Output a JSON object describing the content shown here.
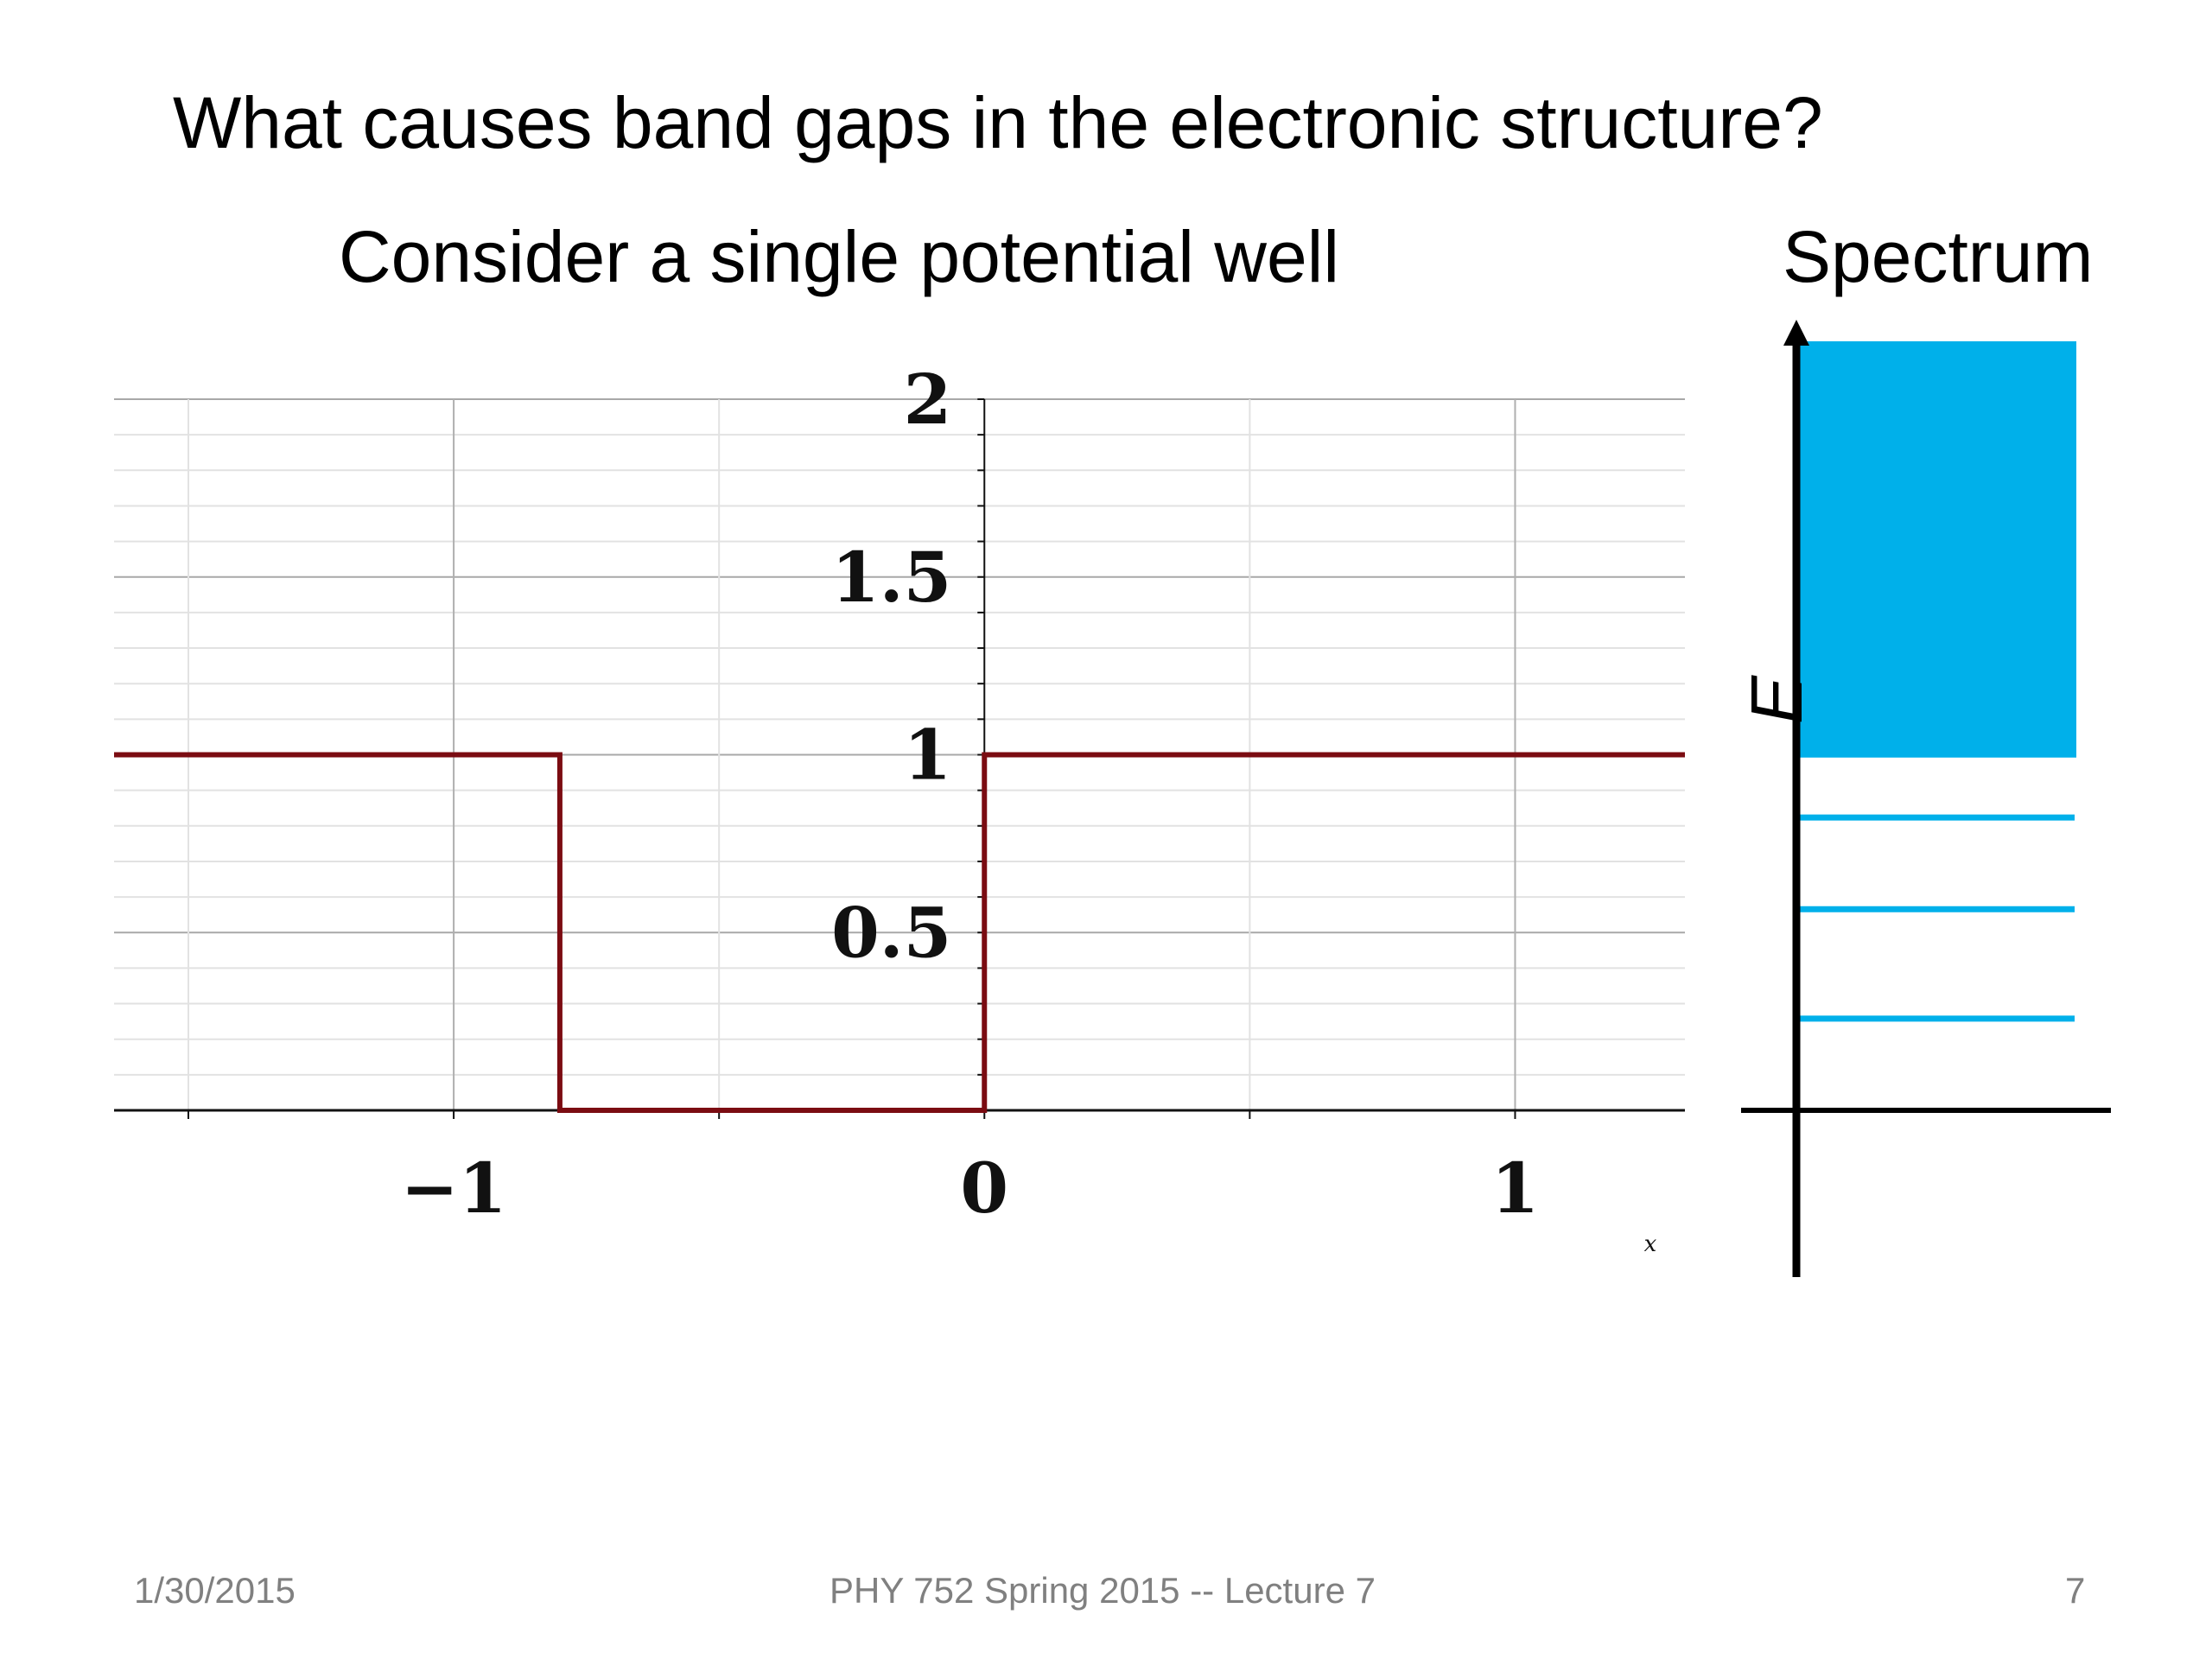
{
  "slide": {
    "title": "What causes band gaps in the electronic structure?",
    "subtitle_left": "Consider a single potential well",
    "subtitle_right": "Spectrum"
  },
  "chart_data": [
    {
      "type": "line",
      "title": "",
      "xlabel": "x",
      "ylabel": "",
      "xlim": [
        -1.64,
        1.32
      ],
      "ylim": [
        0,
        2
      ],
      "x_ticks": [
        -1,
        0,
        1
      ],
      "x_tick_labels": [
        "−1",
        "0",
        "1"
      ],
      "y_ticks": [
        0.5,
        1,
        1.5,
        2
      ],
      "y_tick_labels": [
        "0.5",
        "1",
        "1.5",
        "2"
      ],
      "grid": true,
      "series": [
        {
          "color": "#7b0c12",
          "x": [
            -1.64,
            -0.8,
            -0.8,
            0,
            0,
            1.32
          ],
          "y": [
            1,
            1,
            0,
            0,
            1,
            1
          ]
        }
      ]
    },
    {
      "type": "spectrum",
      "axis_label": "E",
      "ylim": [
        0,
        2.18
      ],
      "bound_levels": [
        0.26,
        0.57,
        0.83
      ],
      "continuum": [
        1,
        2.18
      ],
      "color": "#00b0ea"
    }
  ],
  "footer": {
    "date": "1/30/2015",
    "course": "PHY 752  Spring 2015 -- Lecture 7",
    "page": "7"
  }
}
